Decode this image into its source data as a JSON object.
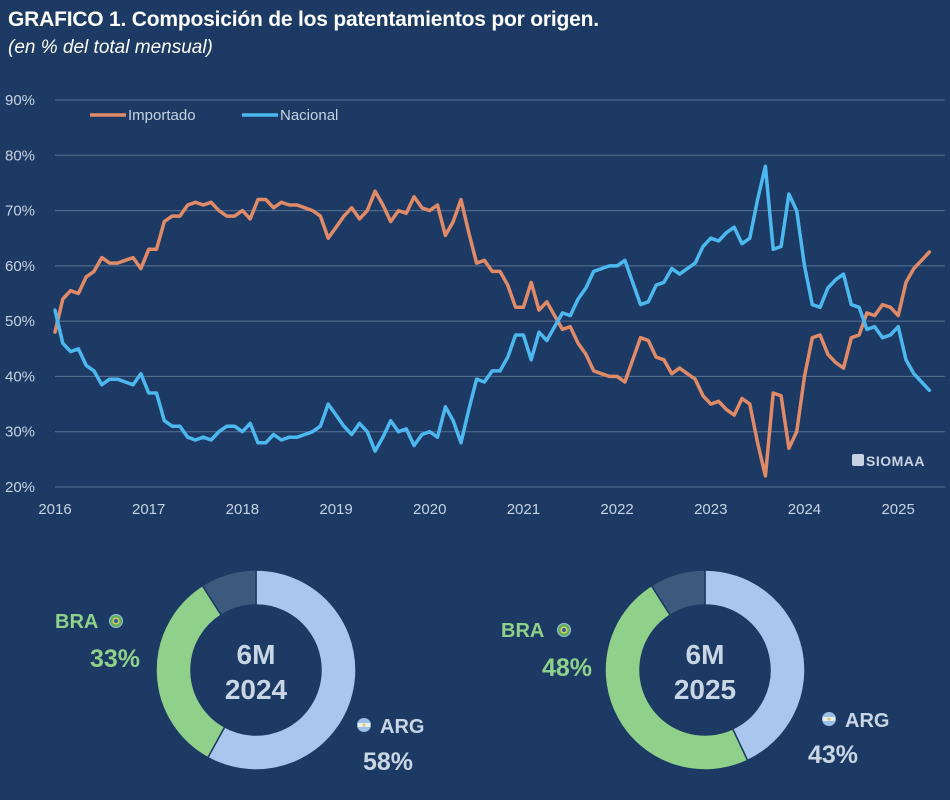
{
  "header": {
    "title": "GRAFICO 1. Composición de los patentamientos por origen.",
    "subtitle": "(en % del total mensual)"
  },
  "watermark": "SIOMAA",
  "colors": {
    "background": "#1c3a63",
    "importado": "#e08a68",
    "nacional": "#4db8f0",
    "grid": "#5a7394",
    "arg": "#a9c6ee",
    "bra": "#8fd18a",
    "other": "#3d5a7e"
  },
  "chart_data": [
    {
      "type": "line",
      "x_start": 2016.0,
      "x_step_months": 1,
      "xlim": [
        2016,
        2025.5
      ],
      "ylim": [
        20,
        90
      ],
      "y_ticks": [
        "20%",
        "30%",
        "40%",
        "50%",
        "60%",
        "70%",
        "80%",
        "90%"
      ],
      "x_ticks": [
        "2016",
        "2017",
        "2018",
        "2019",
        "2020",
        "2021",
        "2022",
        "2023",
        "2024",
        "2025"
      ],
      "legend": "top-left",
      "grid": true,
      "series": [
        {
          "name": "Importado",
          "color": "#e08a68",
          "values": [
            48,
            54,
            55.5,
            55,
            58,
            59,
            61.5,
            60.5,
            60.5,
            61,
            61.5,
            59.5,
            63,
            63,
            68,
            69,
            69,
            71,
            71.5,
            71,
            71.5,
            70,
            69,
            69,
            70,
            68.5,
            72,
            72,
            70.5,
            71.5,
            71,
            71,
            70.5,
            70,
            69,
            65,
            67,
            69,
            70.5,
            68.5,
            70,
            73.5,
            71,
            68,
            70,
            69.5,
            72.5,
            70.5,
            70,
            71,
            65.5,
            68,
            72,
            66,
            60.5,
            61,
            59,
            59,
            56.5,
            52.5,
            52.5,
            57,
            52,
            53.5,
            51,
            48.5,
            49,
            46,
            44,
            41,
            40.5,
            40,
            40,
            39,
            43,
            47,
            46.5,
            43.5,
            43,
            40.5,
            41.5,
            40.5,
            39.5,
            36.5,
            35,
            35.5,
            34,
            33,
            36,
            35,
            28,
            22,
            37,
            36.5,
            27,
            30,
            40,
            47,
            47.5,
            44,
            42.5,
            41.5,
            47,
            47.5,
            51.5,
            51,
            53,
            52.5,
            51,
            57,
            59.5,
            61,
            62.5
          ]
        },
        {
          "name": "Nacional",
          "color": "#4db8f0",
          "values": [
            52,
            46,
            44.5,
            45,
            42,
            41,
            38.5,
            39.5,
            39.5,
            39,
            38.5,
            40.5,
            37,
            37,
            32,
            31,
            31,
            29,
            28.5,
            29,
            28.5,
            30,
            31,
            31,
            30,
            31.5,
            28,
            28,
            29.5,
            28.5,
            29,
            29,
            29.5,
            30,
            31,
            35,
            33,
            31,
            29.5,
            31.5,
            30,
            26.5,
            29,
            32,
            30,
            30.5,
            27.5,
            29.5,
            30,
            29,
            34.5,
            32,
            28,
            34,
            39.5,
            39,
            41,
            41,
            43.5,
            47.5,
            47.5,
            43,
            48,
            46.5,
            49,
            51.5,
            51,
            54,
            56,
            59,
            59.5,
            60,
            60,
            61,
            57,
            53,
            53.5,
            56.5,
            57,
            59.5,
            58.5,
            59.5,
            60.5,
            63.5,
            65,
            64.5,
            66,
            67,
            64,
            65,
            72,
            78,
            63,
            63.5,
            73,
            70,
            60,
            53,
            52.5,
            56,
            57.5,
            58.5,
            53,
            52.5,
            48.5,
            49,
            47,
            47.5,
            49,
            43,
            40.5,
            39,
            37.5
          ]
        }
      ]
    },
    {
      "type": "pie",
      "center_label": [
        "6M",
        "2024"
      ],
      "slices": [
        {
          "name": "ARG",
          "value": 58,
          "label": "58%",
          "color": "#a9c6ee"
        },
        {
          "name": "BRA",
          "value": 33,
          "label": "33%",
          "color": "#8fd18a"
        },
        {
          "name": "",
          "value": 9,
          "label": "",
          "color": "#3d5a7e"
        }
      ]
    },
    {
      "type": "pie",
      "center_label": [
        "6M",
        "2025"
      ],
      "slices": [
        {
          "name": "ARG",
          "value": 43,
          "label": "43%",
          "color": "#a9c6ee"
        },
        {
          "name": "BRA",
          "value": 48,
          "label": "48%",
          "color": "#8fd18a"
        },
        {
          "name": "",
          "value": 9,
          "label": "",
          "color": "#3d5a7e"
        }
      ]
    }
  ]
}
